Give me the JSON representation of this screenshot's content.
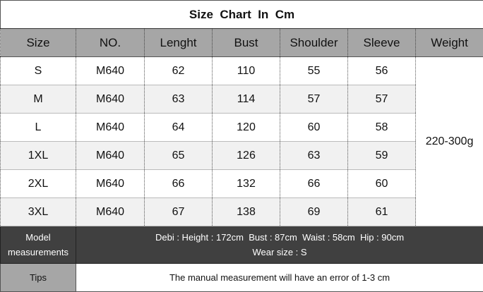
{
  "title": "Size  Chart  In  Cm",
  "header": [
    "Size",
    "NO.",
    "Lenght",
    "Bust",
    "Shoulder",
    "Sleeve",
    "Weight"
  ],
  "rows": [
    [
      "S",
      "M640",
      62,
      110,
      55,
      56
    ],
    [
      "M",
      "M640",
      63,
      114,
      57,
      57
    ],
    [
      "L",
      "M640",
      64,
      120,
      60,
      58
    ],
    [
      "1XL",
      "M640",
      65,
      126,
      63,
      59
    ],
    [
      "2XL",
      "M640",
      66,
      132,
      66,
      60
    ],
    [
      "3XL",
      "M640",
      67,
      138,
      69,
      61
    ]
  ],
  "weight": "220-300g",
  "model": {
    "label": "Model measurements",
    "line1": "Debi : Height : 172cm  Bust : 87cm  Waist : 58cm  Hip : 90cm",
    "line2": "Wear size : S"
  },
  "tips": {
    "label": "Tips",
    "text": "The manual measurement will have an error of 1-3 cm"
  }
}
